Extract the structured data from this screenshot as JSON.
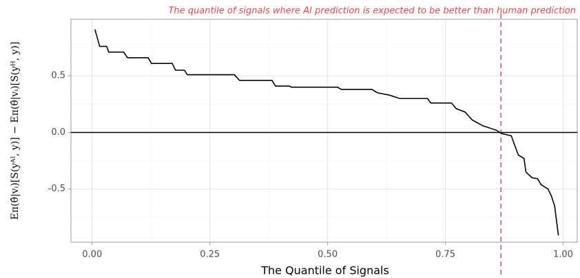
{
  "chart_data": {
    "type": "line",
    "annotation": "The quantile of signals where AI prediction is expected to be better than human prediction",
    "x_label": "The Quantile of Signals",
    "y_label": "Eπ(θ̂|vᵢ)[S(yᴬᴵ, y)] − Eπ(θ̂|vᵢ)[S(yᴴ, y)]",
    "x": [
      0.006,
      0.016,
      0.031,
      0.035,
      0.067,
      0.075,
      0.119,
      0.126,
      0.17,
      0.177,
      0.196,
      0.202,
      0.302,
      0.313,
      0.382,
      0.389,
      0.419,
      0.423,
      0.521,
      0.529,
      0.594,
      0.606,
      0.631,
      0.653,
      0.712,
      0.719,
      0.763,
      0.773,
      0.792,
      0.807,
      0.829,
      0.858,
      0.87,
      0.89,
      0.896,
      0.905,
      0.917,
      0.921,
      0.934,
      0.946,
      0.953,
      0.968,
      0.975,
      0.982,
      0.99
    ],
    "series": [
      {
        "color": "#000000",
        "values": [
          0.91,
          0.76,
          0.76,
          0.71,
          0.71,
          0.66,
          0.66,
          0.61,
          0.61,
          0.55,
          0.55,
          0.51,
          0.51,
          0.46,
          0.46,
          0.41,
          0.41,
          0.4,
          0.4,
          0.38,
          0.38,
          0.35,
          0.33,
          0.3,
          0.3,
          0.26,
          0.26,
          0.21,
          0.18,
          0.11,
          0.06,
          0.02,
          -0.01,
          -0.03,
          -0.1,
          -0.2,
          -0.23,
          -0.35,
          -0.4,
          -0.41,
          -0.46,
          -0.5,
          -0.56,
          -0.65,
          -0.91
        ]
      }
    ],
    "threshold_x": 0.868,
    "threshold_color": "#e8474f",
    "hline_y": 0,
    "xlim": [
      -0.045,
      1.03
    ],
    "ylim": [
      -0.97,
      1.0
    ],
    "xticks": [
      {
        "value": 0,
        "label": "0.00"
      },
      0.25,
      {
        "value": 0.5,
        "label": "0.50"
      },
      0.75,
      {
        "value": 1,
        "label": "1.00"
      }
    ],
    "yticks": [
      -0.5,
      {
        "value": 0,
        "label": "0.0"
      },
      0.5
    ],
    "minor_xticks": [
      0.125,
      0.375,
      0.625,
      0.875
    ],
    "minor_yticks": [
      -0.75,
      -0.25,
      0.25,
      0.75
    ],
    "grid": true
  }
}
